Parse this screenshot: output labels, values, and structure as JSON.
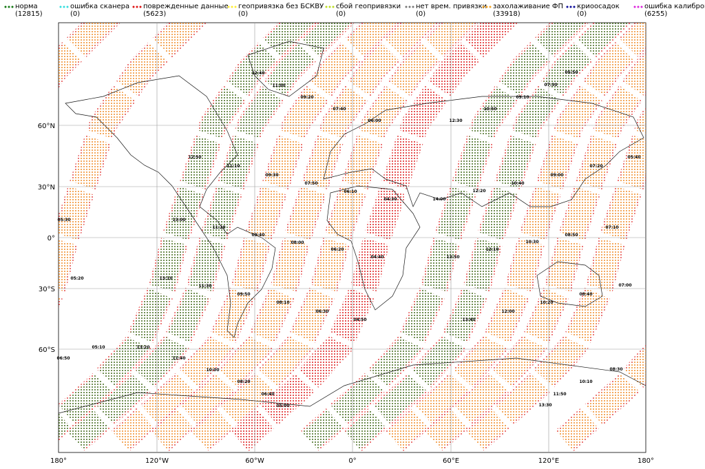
{
  "legend": [
    {
      "name": "норма",
      "count": "(12815)",
      "color": "#117711"
    },
    {
      "name": "ошибка сканера",
      "count": "(0)",
      "color": "#33dddd"
    },
    {
      "name": "поврежденные данные",
      "count": "(5623)",
      "color": "#dd1111"
    },
    {
      "name": "геопривязка без БСКВУ",
      "count": "(0)",
      "color": "#ffee33"
    },
    {
      "name": "сбой геопривязки",
      "count": "(0)",
      "color": "#bbdd22"
    },
    {
      "name": "нет врем. привязки",
      "count": "(0)",
      "color": "#777777"
    },
    {
      "name": "захолаживание ФП",
      "count": "(33918)",
      "color": "#f5a623"
    },
    {
      "name": "криоосадок",
      "count": "(0)",
      "color": "#0a0a99"
    },
    {
      "name": "ошибка калибровки",
      "count": "(6255)",
      "color": "#dd22dd"
    }
  ],
  "axes": {
    "x_labels": [
      "180°",
      "120°W",
      "60°W",
      "0°",
      "60°E",
      "120°E",
      "180°"
    ],
    "y_labels": [
      "60°N",
      "30°N",
      "0°",
      "30°S",
      "60°S"
    ]
  },
  "time_labels": [
    "12:40",
    "11:00",
    "09:20",
    "07:40",
    "06:00",
    "05:50",
    "07:30",
    "09:10",
    "10:50",
    "12:30",
    "12:50",
    "11:10",
    "09:30",
    "07:50",
    "06:10",
    "04:30",
    "05:40",
    "07:20",
    "09:00",
    "10:40",
    "12:20",
    "14:00",
    "05:30",
    "13:00",
    "11:20",
    "09:40",
    "08:00",
    "06:20",
    "04:40",
    "08:50",
    "07:10",
    "10:30",
    "12:10",
    "13:50",
    "05:20",
    "13:10",
    "11:30",
    "09:50",
    "08:10",
    "06:30",
    "04:50",
    "07:00",
    "08:40",
    "10:20",
    "12:00",
    "13:40",
    "05:10",
    "13:20",
    "11:40",
    "10:00",
    "08:20",
    "06:40",
    "05:00",
    "08:30",
    "10:10",
    "11:50",
    "13:30",
    "06:50"
  ]
}
